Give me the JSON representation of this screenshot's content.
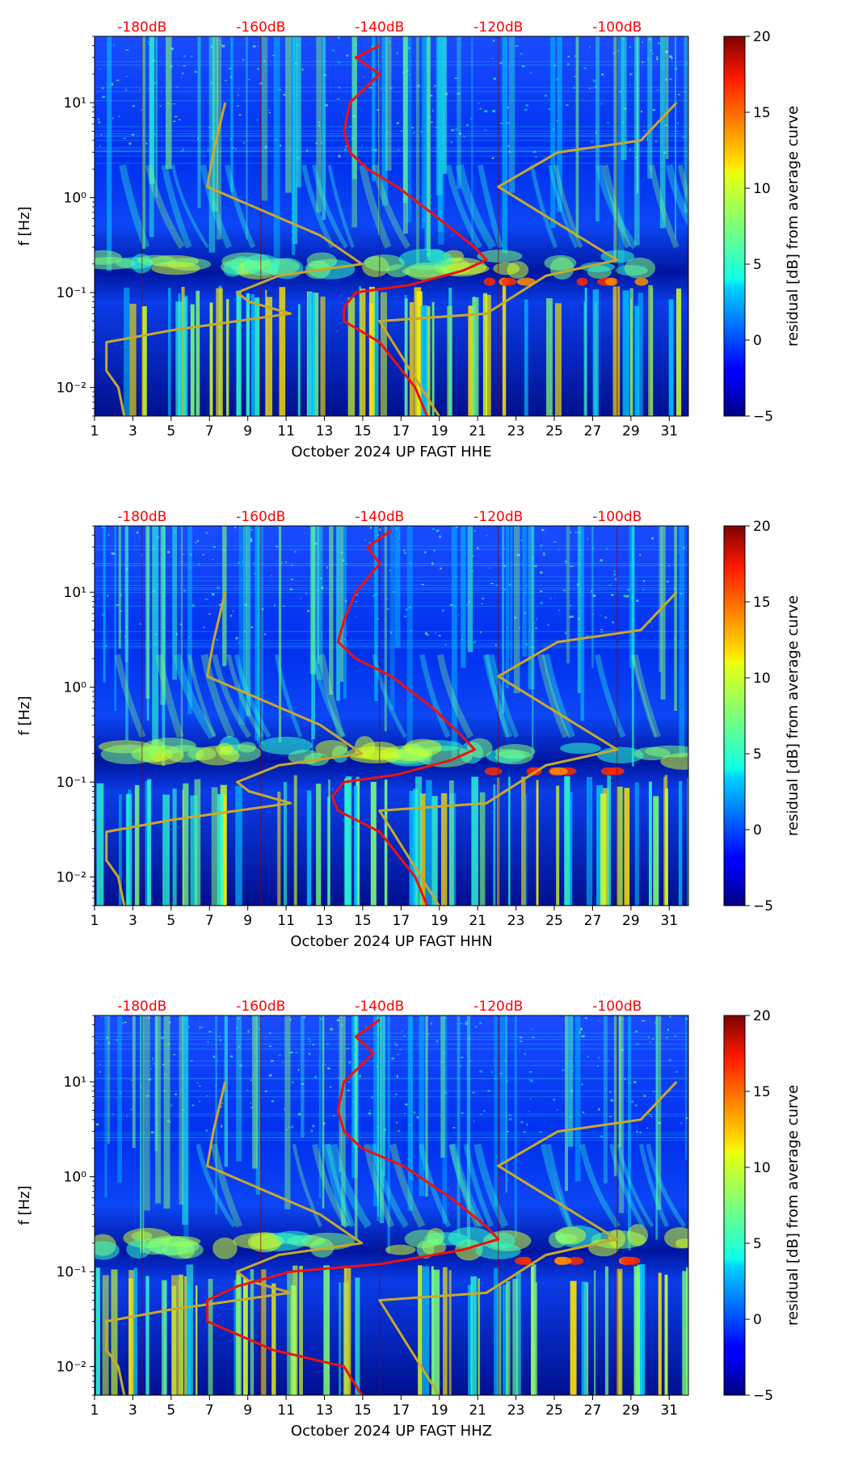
{
  "chart_data": [
    {
      "type": "heatmap",
      "xlabel": "October 2024 UP FAGT  HHE",
      "ylabel": "f [Hz]",
      "x_ticks": [
        "1",
        "3",
        "5",
        "7",
        "9",
        "11",
        "13",
        "15",
        "17",
        "19",
        "21",
        "23",
        "25",
        "27",
        "29",
        "31"
      ],
      "y_ticks": [
        "10⁻²",
        "10⁻¹",
        "10⁰",
        "10¹"
      ],
      "xlim": [
        1,
        32
      ],
      "ylim_hz": [
        0.005,
        50
      ],
      "db_ticks": [
        "-180dB",
        "-160dB",
        "-140dB",
        "-120dB",
        "-100dB"
      ],
      "db_range": [
        -188,
        -88
      ],
      "colorbar_label": "residual [dB] from average curve",
      "colorbar_ticks": [
        "20",
        "15",
        "10",
        "5",
        "0",
        "−5"
      ],
      "colorbar_range": [
        -5,
        20
      ],
      "red_curve": [
        [
          -140,
          40
        ],
        [
          -144,
          30
        ],
        [
          -140,
          20
        ],
        [
          -145,
          10
        ],
        [
          -146,
          5
        ],
        [
          -145,
          3
        ],
        [
          -142,
          2
        ],
        [
          -137,
          1.3
        ],
        [
          -130,
          0.6
        ],
        [
          -124,
          0.3
        ],
        [
          -122,
          0.22
        ],
        [
          -126,
          0.17
        ],
        [
          -135,
          0.12
        ],
        [
          -144,
          0.1
        ],
        [
          -146,
          0.07
        ],
        [
          -146,
          0.05
        ],
        [
          -140,
          0.03
        ],
        [
          -134,
          0.01
        ],
        [
          -132,
          0.005
        ]
      ],
      "noise_model_low": [
        [
          -166,
          10
        ],
        [
          -168,
          3
        ],
        [
          -169,
          1.3
        ],
        [
          -150,
          0.4
        ],
        [
          -143,
          0.2
        ],
        [
          -157,
          0.15
        ],
        [
          -164,
          0.1
        ],
        [
          -162,
          0.08
        ],
        [
          -155,
          0.06
        ],
        [
          -175,
          0.04
        ],
        [
          -186,
          0.03
        ],
        [
          -186,
          0.015
        ],
        [
          -184,
          0.01
        ],
        [
          -183,
          0.005
        ]
      ],
      "noise_model_high": [
        [
          -90,
          10
        ],
        [
          -96,
          4
        ],
        [
          -110,
          3
        ],
        [
          -120,
          1.3
        ],
        [
          -100,
          0.22
        ],
        [
          -112,
          0.15
        ],
        [
          -122,
          0.06
        ],
        [
          -140,
          0.05
        ],
        [
          -130,
          0.005
        ]
      ]
    },
    {
      "type": "heatmap",
      "xlabel": "October 2024 UP FAGT  HHN",
      "ylabel": "f [Hz]",
      "x_ticks": [
        "1",
        "3",
        "5",
        "7",
        "9",
        "11",
        "13",
        "15",
        "17",
        "19",
        "21",
        "23",
        "25",
        "27",
        "29",
        "31"
      ],
      "y_ticks": [
        "10⁻²",
        "10⁻¹",
        "10⁰",
        "10¹"
      ],
      "xlim": [
        1,
        32
      ],
      "ylim_hz": [
        0.005,
        50
      ],
      "db_ticks": [
        "-180dB",
        "-160dB",
        "-140dB",
        "-120dB",
        "-100dB"
      ],
      "db_range": [
        -188,
        -88
      ],
      "colorbar_label": "residual [dB] from average curve",
      "colorbar_ticks": [
        "20",
        "15",
        "10",
        "5",
        "0",
        "−5"
      ],
      "colorbar_range": [
        -5,
        20
      ],
      "red_curve": [
        [
          -138,
          45
        ],
        [
          -142,
          30
        ],
        [
          -140,
          20
        ],
        [
          -144,
          10
        ],
        [
          -146,
          5
        ],
        [
          -147,
          3
        ],
        [
          -144,
          2
        ],
        [
          -138,
          1.3
        ],
        [
          -131,
          0.6
        ],
        [
          -126,
          0.3
        ],
        [
          -124,
          0.22
        ],
        [
          -128,
          0.17
        ],
        [
          -137,
          0.12
        ],
        [
          -146,
          0.1
        ],
        [
          -148,
          0.07
        ],
        [
          -147,
          0.05
        ],
        [
          -140,
          0.03
        ],
        [
          -134,
          0.01
        ],
        [
          -132,
          0.005
        ]
      ],
      "noise_model_low": [
        [
          -166,
          10
        ],
        [
          -168,
          3
        ],
        [
          -169,
          1.3
        ],
        [
          -150,
          0.4
        ],
        [
          -143,
          0.2
        ],
        [
          -157,
          0.15
        ],
        [
          -164,
          0.1
        ],
        [
          -162,
          0.08
        ],
        [
          -155,
          0.06
        ],
        [
          -175,
          0.04
        ],
        [
          -186,
          0.03
        ],
        [
          -186,
          0.015
        ],
        [
          -184,
          0.01
        ],
        [
          -183,
          0.005
        ]
      ],
      "noise_model_high": [
        [
          -90,
          10
        ],
        [
          -96,
          4
        ],
        [
          -110,
          3
        ],
        [
          -120,
          1.3
        ],
        [
          -100,
          0.22
        ],
        [
          -112,
          0.15
        ],
        [
          -122,
          0.06
        ],
        [
          -140,
          0.05
        ],
        [
          -130,
          0.005
        ]
      ]
    },
    {
      "type": "heatmap",
      "xlabel": "October 2024 UP FAGT  HHZ",
      "ylabel": "f [Hz]",
      "x_ticks": [
        "1",
        "3",
        "5",
        "7",
        "9",
        "11",
        "13",
        "15",
        "17",
        "19",
        "21",
        "23",
        "25",
        "27",
        "29",
        "31"
      ],
      "y_ticks": [
        "10⁻²",
        "10⁻¹",
        "10⁰",
        "10¹"
      ],
      "xlim": [
        1,
        32
      ],
      "ylim_hz": [
        0.005,
        50
      ],
      "db_ticks": [
        "-180dB",
        "-160dB",
        "-140dB",
        "-120dB",
        "-100dB"
      ],
      "db_range": [
        -188,
        -88
      ],
      "colorbar_label": "residual [dB] from average curve",
      "colorbar_ticks": [
        "20",
        "15",
        "10",
        "5",
        "0",
        "−5"
      ],
      "colorbar_range": [
        -5,
        20
      ],
      "red_curve": [
        [
          -140,
          45
        ],
        [
          -144,
          30
        ],
        [
          -141,
          20
        ],
        [
          -146,
          10
        ],
        [
          -147,
          5
        ],
        [
          -146,
          3
        ],
        [
          -143,
          2
        ],
        [
          -136,
          1.3
        ],
        [
          -128,
          0.6
        ],
        [
          -122,
          0.3
        ],
        [
          -120,
          0.22
        ],
        [
          -126,
          0.17
        ],
        [
          -140,
          0.12
        ],
        [
          -155,
          0.1
        ],
        [
          -164,
          0.07
        ],
        [
          -169,
          0.05
        ],
        [
          -169,
          0.03
        ],
        [
          -158,
          0.015
        ],
        [
          -146,
          0.01
        ],
        [
          -143,
          0.005
        ]
      ],
      "noise_model_low": [
        [
          -166,
          10
        ],
        [
          -168,
          3
        ],
        [
          -169,
          1.3
        ],
        [
          -150,
          0.4
        ],
        [
          -143,
          0.2
        ],
        [
          -157,
          0.15
        ],
        [
          -164,
          0.1
        ],
        [
          -162,
          0.08
        ],
        [
          -155,
          0.06
        ],
        [
          -175,
          0.04
        ],
        [
          -186,
          0.03
        ],
        [
          -186,
          0.015
        ],
        [
          -184,
          0.01
        ],
        [
          -183,
          0.005
        ]
      ],
      "noise_model_high": [
        [
          -90,
          10
        ],
        [
          -96,
          4
        ],
        [
          -110,
          3
        ],
        [
          -120,
          1.3
        ],
        [
          -100,
          0.22
        ],
        [
          -112,
          0.15
        ],
        [
          -122,
          0.06
        ],
        [
          -140,
          0.05
        ],
        [
          -130,
          0.005
        ]
      ]
    }
  ],
  "colors": {
    "db_label": "#ff0000",
    "red_curve": "#ee1111",
    "noise_model": "#c8a92a",
    "axis": "#000000"
  }
}
